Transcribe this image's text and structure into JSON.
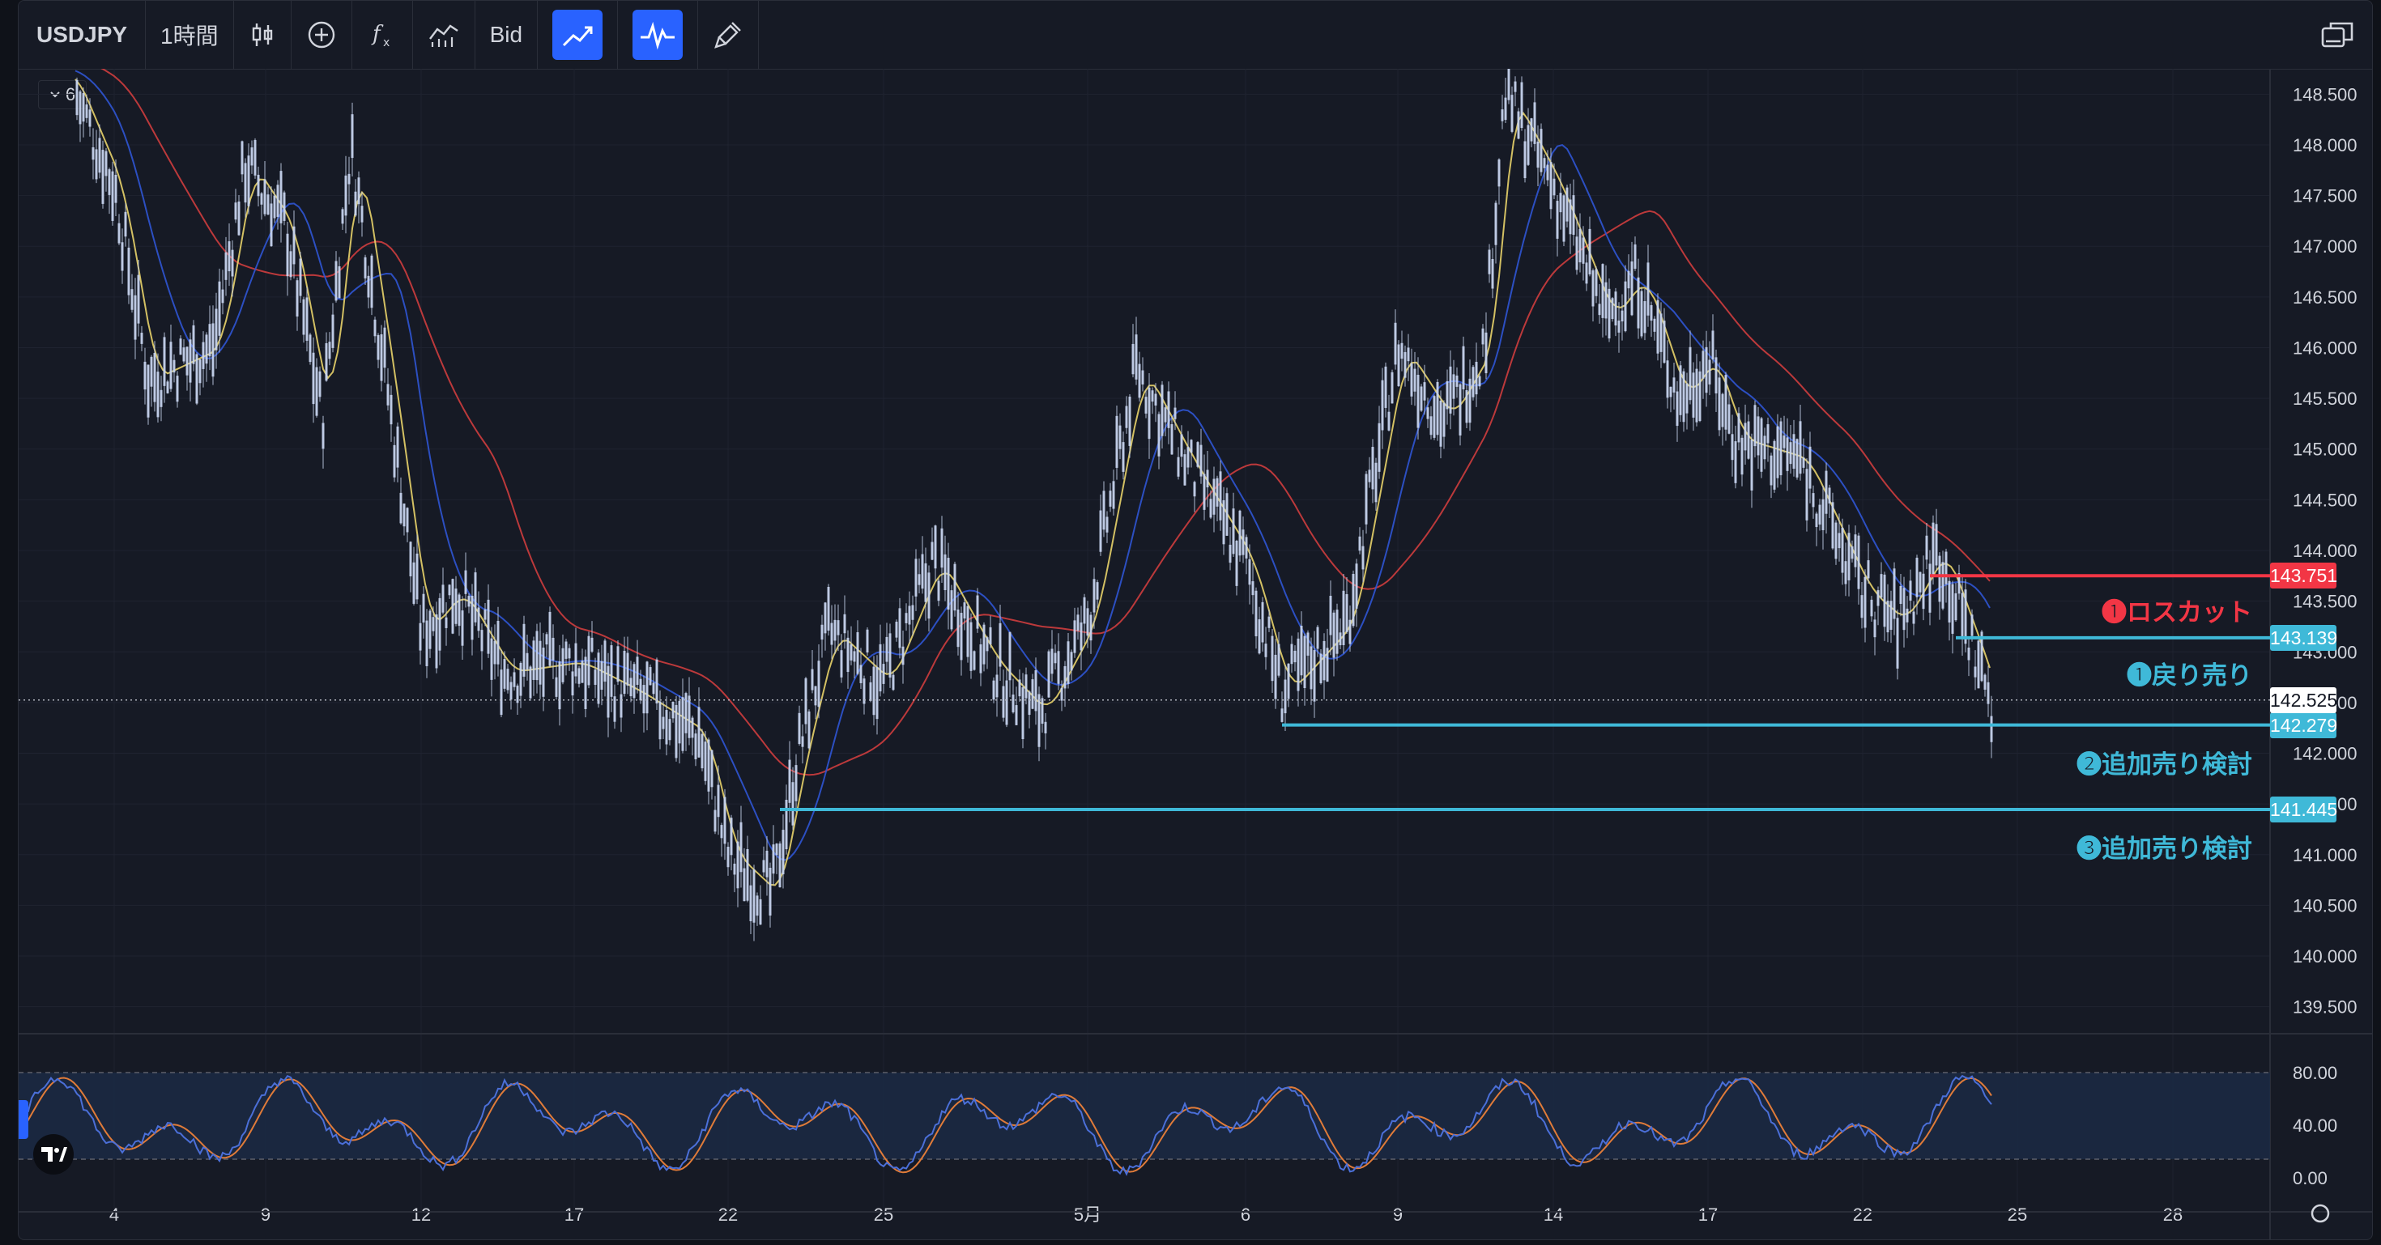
{
  "toolbar": {
    "symbol": "USDJPY",
    "interval": "1時間",
    "price_type": "Bid",
    "icons": [
      "candles-icon",
      "add-indicator-icon",
      "fx-icon",
      "indicators-icon",
      "price-line-icon",
      "oscillator-icon",
      "brush-icon"
    ]
  },
  "chart_legend": {
    "value": "6"
  },
  "price_axis": {
    "labels": [
      "148.500",
      "148.000",
      "147.500",
      "147.000",
      "146.500",
      "146.000",
      "145.500",
      "145.000",
      "144.500",
      "144.000",
      "143.500",
      "143.000",
      "142.500",
      "142.000",
      "141.500",
      "141.000",
      "140.500",
      "140.000",
      "139.500"
    ]
  },
  "time_axis": {
    "labels": [
      "4",
      "9",
      "12",
      "17",
      "22",
      "25",
      "5月",
      "6",
      "9",
      "14",
      "17",
      "22",
      "25",
      "28"
    ]
  },
  "oscillator_axis": {
    "labels": [
      "80.00",
      "40.00",
      "0.00"
    ]
  },
  "levels": [
    {
      "price_tag": "143.751",
      "label": "❶ロスカット",
      "color": "#f23645"
    },
    {
      "price_tag": "143.139",
      "label": "❶戻り売り",
      "color": "#3fb9d8"
    },
    {
      "price_tag": "142.279",
      "label": "❷追加売り検討",
      "color": "#3fb9d8"
    },
    {
      "price_tag": "141.445",
      "label": "❸追加売り検討",
      "color": "#3fb9d8"
    }
  ],
  "current_price": {
    "tag": "142.525"
  },
  "colors": {
    "background": "#161a25",
    "candle": "#c8d5f0",
    "ma_fast": "#e8d36a",
    "ma_mid": "#2f55d4",
    "ma_slow": "#d94040",
    "loss_cut": "#f23645",
    "sell": "#3fb9d8",
    "stoch_k": "#4b6fd8",
    "stoch_d": "#e07b39"
  },
  "chart_data": {
    "type": "candlestick",
    "title": "",
    "xlabel": "",
    "ylabel": "",
    "ylim": [
      139.25,
      148.75
    ],
    "x": [
      "4",
      "9",
      "12",
      "17",
      "22",
      "25",
      "5月",
      "6",
      "9",
      "14",
      "17",
      "22"
    ],
    "close": [
      147.8,
      147.2,
      144.6,
      143.1,
      141.0,
      143.6,
      143.2,
      142.6,
      146.5,
      147.2,
      145.3,
      142.5
    ],
    "horizontal_lines": [
      143.751,
      143.139,
      142.279,
      141.445
    ],
    "current_price": 142.525,
    "oscillator": {
      "ylim": [
        0,
        100
      ],
      "bands": [
        20,
        80
      ]
    }
  }
}
